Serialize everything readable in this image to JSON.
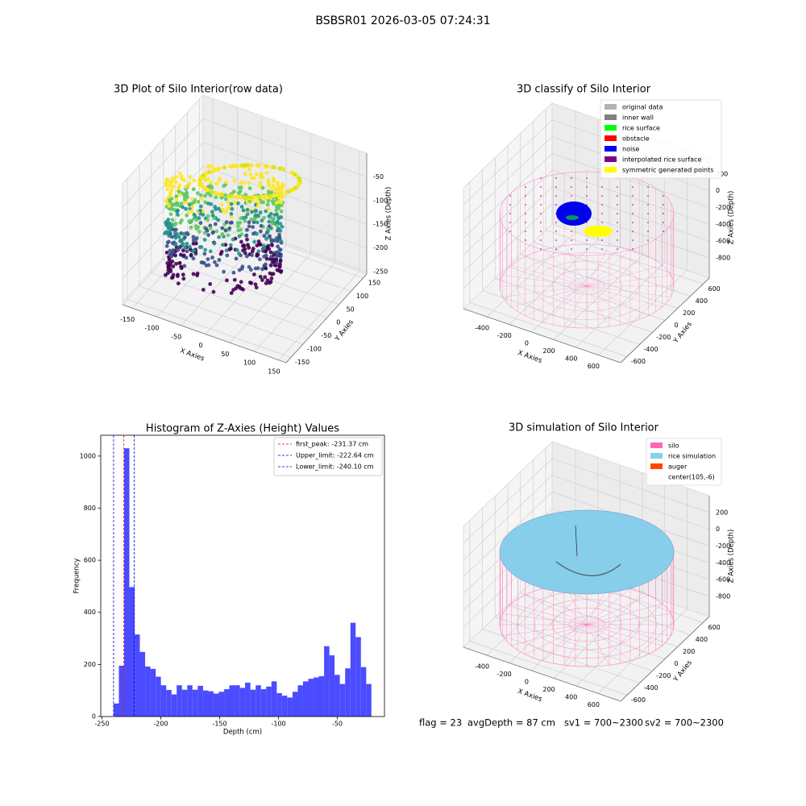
{
  "title": "BSBSR01 2026-03-05 07:24:31",
  "footer": [
    "flag = 23",
    "avgDepth = 87 cm",
    "sv1 = 700~2300",
    "sv2 = 700~2300"
  ],
  "chart_data": [
    {
      "type": "scatter3d",
      "title": "3D Plot of Silo Interior(row data)",
      "xlabel": "X Axies",
      "ylabel": "Y Axies",
      "zlabel": "Z Axies (Depth)",
      "xlim": [
        -170,
        165
      ],
      "ylim": [
        -170,
        165
      ],
      "zlim": [
        -255,
        0
      ],
      "xticks": [
        -150,
        -100,
        -50,
        0,
        50,
        100,
        150
      ],
      "yticks": [
        -150,
        -100,
        -50,
        0,
        50,
        100,
        150
      ],
      "zticks": [
        -250,
        -200,
        -150,
        -100,
        -50
      ]
    },
    {
      "type": "scatter3d",
      "title": "3D classify of Silo Interior",
      "xlabel": "X Axies",
      "ylabel": "Y Axies",
      "zlabel": "Z Axies (Depth)",
      "xlim": [
        -610,
        800
      ],
      "ylim": [
        -700,
        700
      ],
      "zlim": [
        -1040,
        400
      ],
      "xticks": [
        -400,
        -200,
        0,
        200,
        400,
        600
      ],
      "yticks": [
        -600,
        -400,
        -200,
        0,
        200,
        400,
        600
      ],
      "zticks": [
        -800,
        -600,
        -400,
        -200,
        0,
        200
      ],
      "legend_loc": "upper right",
      "legend": [
        {
          "name": "original data",
          "color": "#b3b3b3"
        },
        {
          "name": "inner wall",
          "color": "#808080"
        },
        {
          "name": "rice surface",
          "color": "#00ff00"
        },
        {
          "name": "obstacle",
          "color": "#ff0000"
        },
        {
          "name": "noise",
          "color": "#0000ff"
        },
        {
          "name": "interpolated rice surface",
          "color": "#800080"
        },
        {
          "name": "symmetric generated points",
          "color": "#ffff00"
        }
      ]
    },
    {
      "type": "histogram",
      "title": "Histogram of Z-Axies (Height) Values",
      "xlabel": "Depth (cm)",
      "ylabel": "Frequency",
      "color": "#4b4bff",
      "bins": [
        -240.1,
        -235.6,
        -231.2,
        -226.7,
        -222.2,
        -217.8,
        -213.3,
        -208.8,
        -204.3,
        -199.9,
        -195.4,
        -190.9,
        -186.5,
        -182.0,
        -177.5,
        -173.1,
        -168.6,
        -164.1,
        -159.6,
        -155.2,
        -150.7,
        -146.2,
        -141.8,
        -137.3,
        -132.8,
        -128.4,
        -123.9,
        -119.4,
        -114.9,
        -110.5,
        -106.0,
        -101.5,
        -97.1,
        -92.6,
        -88.1,
        -83.6,
        -79.2,
        -74.7,
        -70.2,
        -65.8,
        -61.3,
        -56.8,
        -52.4,
        -47.9,
        -43.4,
        -38.9,
        -34.5,
        -30.0,
        -25.5,
        -21.1
      ],
      "values": [
        50,
        195,
        1030,
        497,
        315,
        248,
        192,
        183,
        153,
        120,
        102,
        85,
        120,
        103,
        120,
        103,
        118,
        100,
        97,
        88,
        95,
        105,
        120,
        120,
        110,
        130,
        103,
        120,
        105,
        115,
        135,
        90,
        80,
        73,
        95,
        120,
        135,
        145,
        150,
        155,
        270,
        235,
        160,
        125,
        185,
        360,
        305,
        190,
        125
      ],
      "xlim": [
        -251,
        -10
      ],
      "ylim": [
        0,
        1080
      ],
      "xticks": [
        -250,
        -200,
        -150,
        -100,
        -50
      ],
      "yticks": [
        0,
        200,
        400,
        600,
        800,
        1000
      ],
      "legend_loc": "upper right",
      "lines": [
        {
          "label": "first_peak: -231.37 cm",
          "value": -231.37,
          "color": "#ff0000"
        },
        {
          "label": "Upper_limit: -222.64 cm",
          "value": -222.64,
          "color": "#0000cc"
        },
        {
          "label": "Lower_limit: -240.10 cm",
          "value": -240.1,
          "color": "#0000cc"
        }
      ]
    },
    {
      "type": "scatter3d",
      "title": "3D simulation of Silo Interior",
      "xlabel": "X Axies",
      "ylabel": "Y Axies",
      "zlabel": "Z Axies (Depth)",
      "xlim": [
        -610,
        800
      ],
      "ylim": [
        -700,
        700
      ],
      "zlim": [
        -1040,
        400
      ],
      "xticks": [
        -400,
        -200,
        0,
        200,
        400,
        600
      ],
      "yticks": [
        -600,
        -400,
        -200,
        0,
        200,
        400,
        600
      ],
      "zticks": [
        -800,
        -600,
        -400,
        -200,
        0,
        200
      ],
      "legend_loc": "upper right",
      "legend": [
        {
          "name": "silo",
          "color": "#ff69b4"
        },
        {
          "name": "rice simulation",
          "color": "#87ceeb"
        },
        {
          "name": "auger",
          "color": "#ff4500"
        },
        {
          "name": "center(105,-6)",
          "color": "#ffffff"
        }
      ]
    }
  ]
}
